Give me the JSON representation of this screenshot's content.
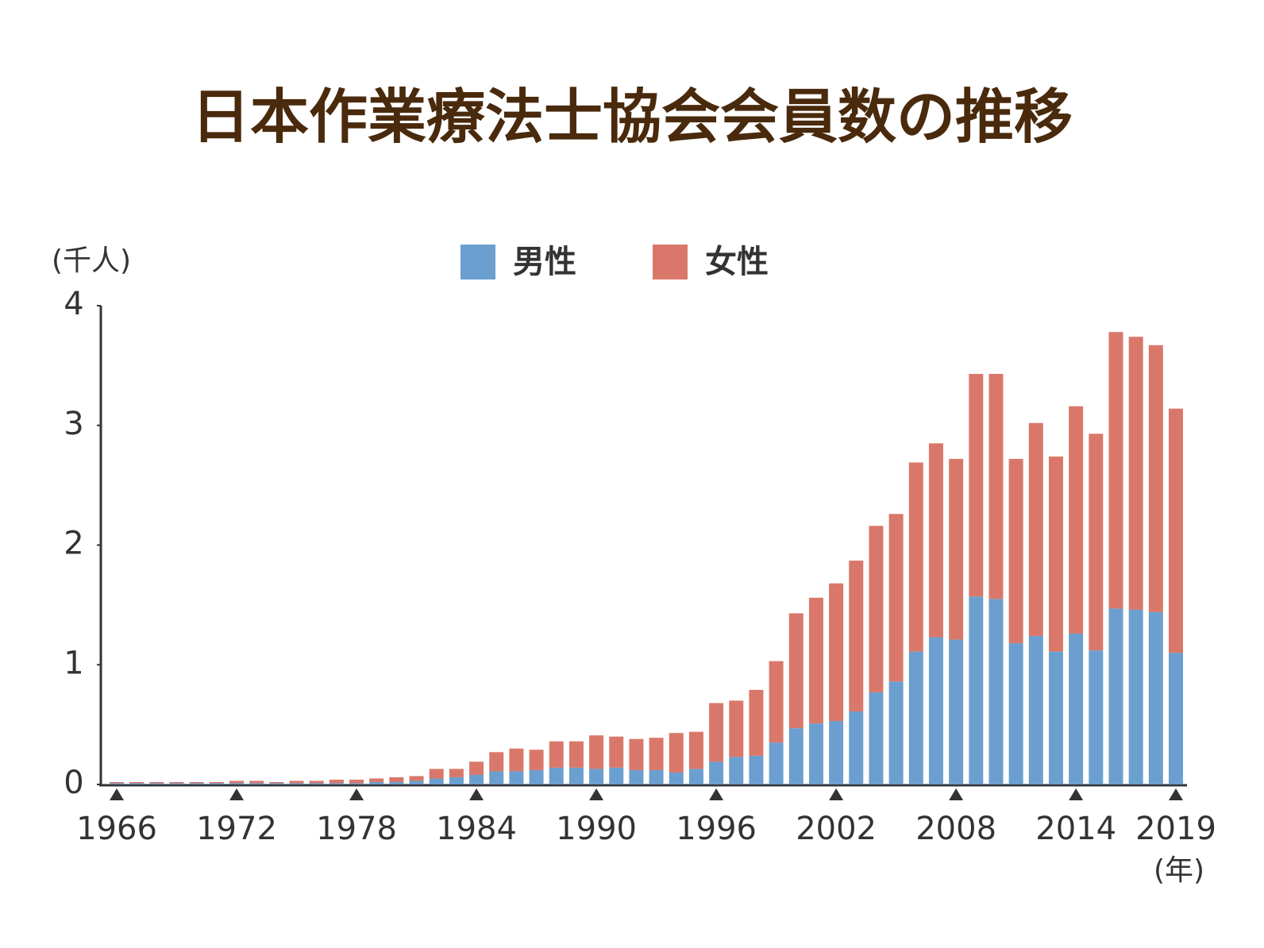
{
  "chart_data": {
    "type": "stacked_bar",
    "title": "日本作業療法士協会会員数の推移",
    "y_label": "(千人)",
    "x_label": "(年)",
    "categories": [
      "1966",
      null,
      null,
      null,
      null,
      null,
      "1972",
      null,
      null,
      null,
      null,
      null,
      "1978",
      null,
      null,
      null,
      null,
      null,
      "1984",
      null,
      null,
      null,
      null,
      null,
      "1990",
      null,
      null,
      null,
      null,
      null,
      "1996",
      null,
      null,
      null,
      null,
      null,
      "2002",
      null,
      null,
      null,
      null,
      null,
      "2008",
      null,
      null,
      null,
      null,
      null,
      "2014",
      null,
      null,
      null,
      null,
      "2019"
    ],
    "series": [
      {
        "name": "男性",
        "color": "#6a9fcf",
        "values": [
          0.01,
          0.01,
          0.01,
          0.01,
          0.01,
          0.01,
          0.01,
          0.01,
          0.01,
          0.01,
          0.01,
          0.01,
          0.01,
          0.02,
          0.02,
          0.03,
          0.05,
          0.06,
          0.08,
          0.11,
          0.11,
          0.12,
          0.14,
          0.14,
          0.13,
          0.14,
          0.12,
          0.12,
          0.1,
          0.13,
          0.19,
          0.23,
          0.24,
          0.35,
          0.47,
          0.51,
          0.53,
          0.61,
          0.77,
          0.86,
          1.11,
          1.23,
          1.21,
          1.57,
          1.55,
          1.18,
          1.24,
          1.11,
          1.26,
          1.12,
          1.47,
          1.46,
          1.44,
          1.1
        ]
      },
      {
        "name": "女性",
        "color": "#d9786a",
        "values": [
          0.01,
          0.01,
          0.01,
          0.01,
          0.01,
          0.01,
          0.02,
          0.02,
          0.01,
          0.02,
          0.02,
          0.03,
          0.03,
          0.03,
          0.04,
          0.04,
          0.08,
          0.07,
          0.11,
          0.16,
          0.19,
          0.17,
          0.22,
          0.22,
          0.28,
          0.26,
          0.26,
          0.27,
          0.33,
          0.31,
          0.49,
          0.47,
          0.55,
          0.68,
          0.96,
          1.05,
          1.15,
          1.26,
          1.39,
          1.4,
          1.58,
          1.62,
          1.51,
          1.86,
          1.88,
          1.54,
          1.78,
          1.63,
          1.9,
          1.81,
          2.31,
          2.28,
          2.23,
          2.04
        ]
      }
    ],
    "ylim": [
      0,
      4
    ],
    "yticks": [
      0,
      1,
      2,
      3,
      4
    ],
    "grid": false
  }
}
